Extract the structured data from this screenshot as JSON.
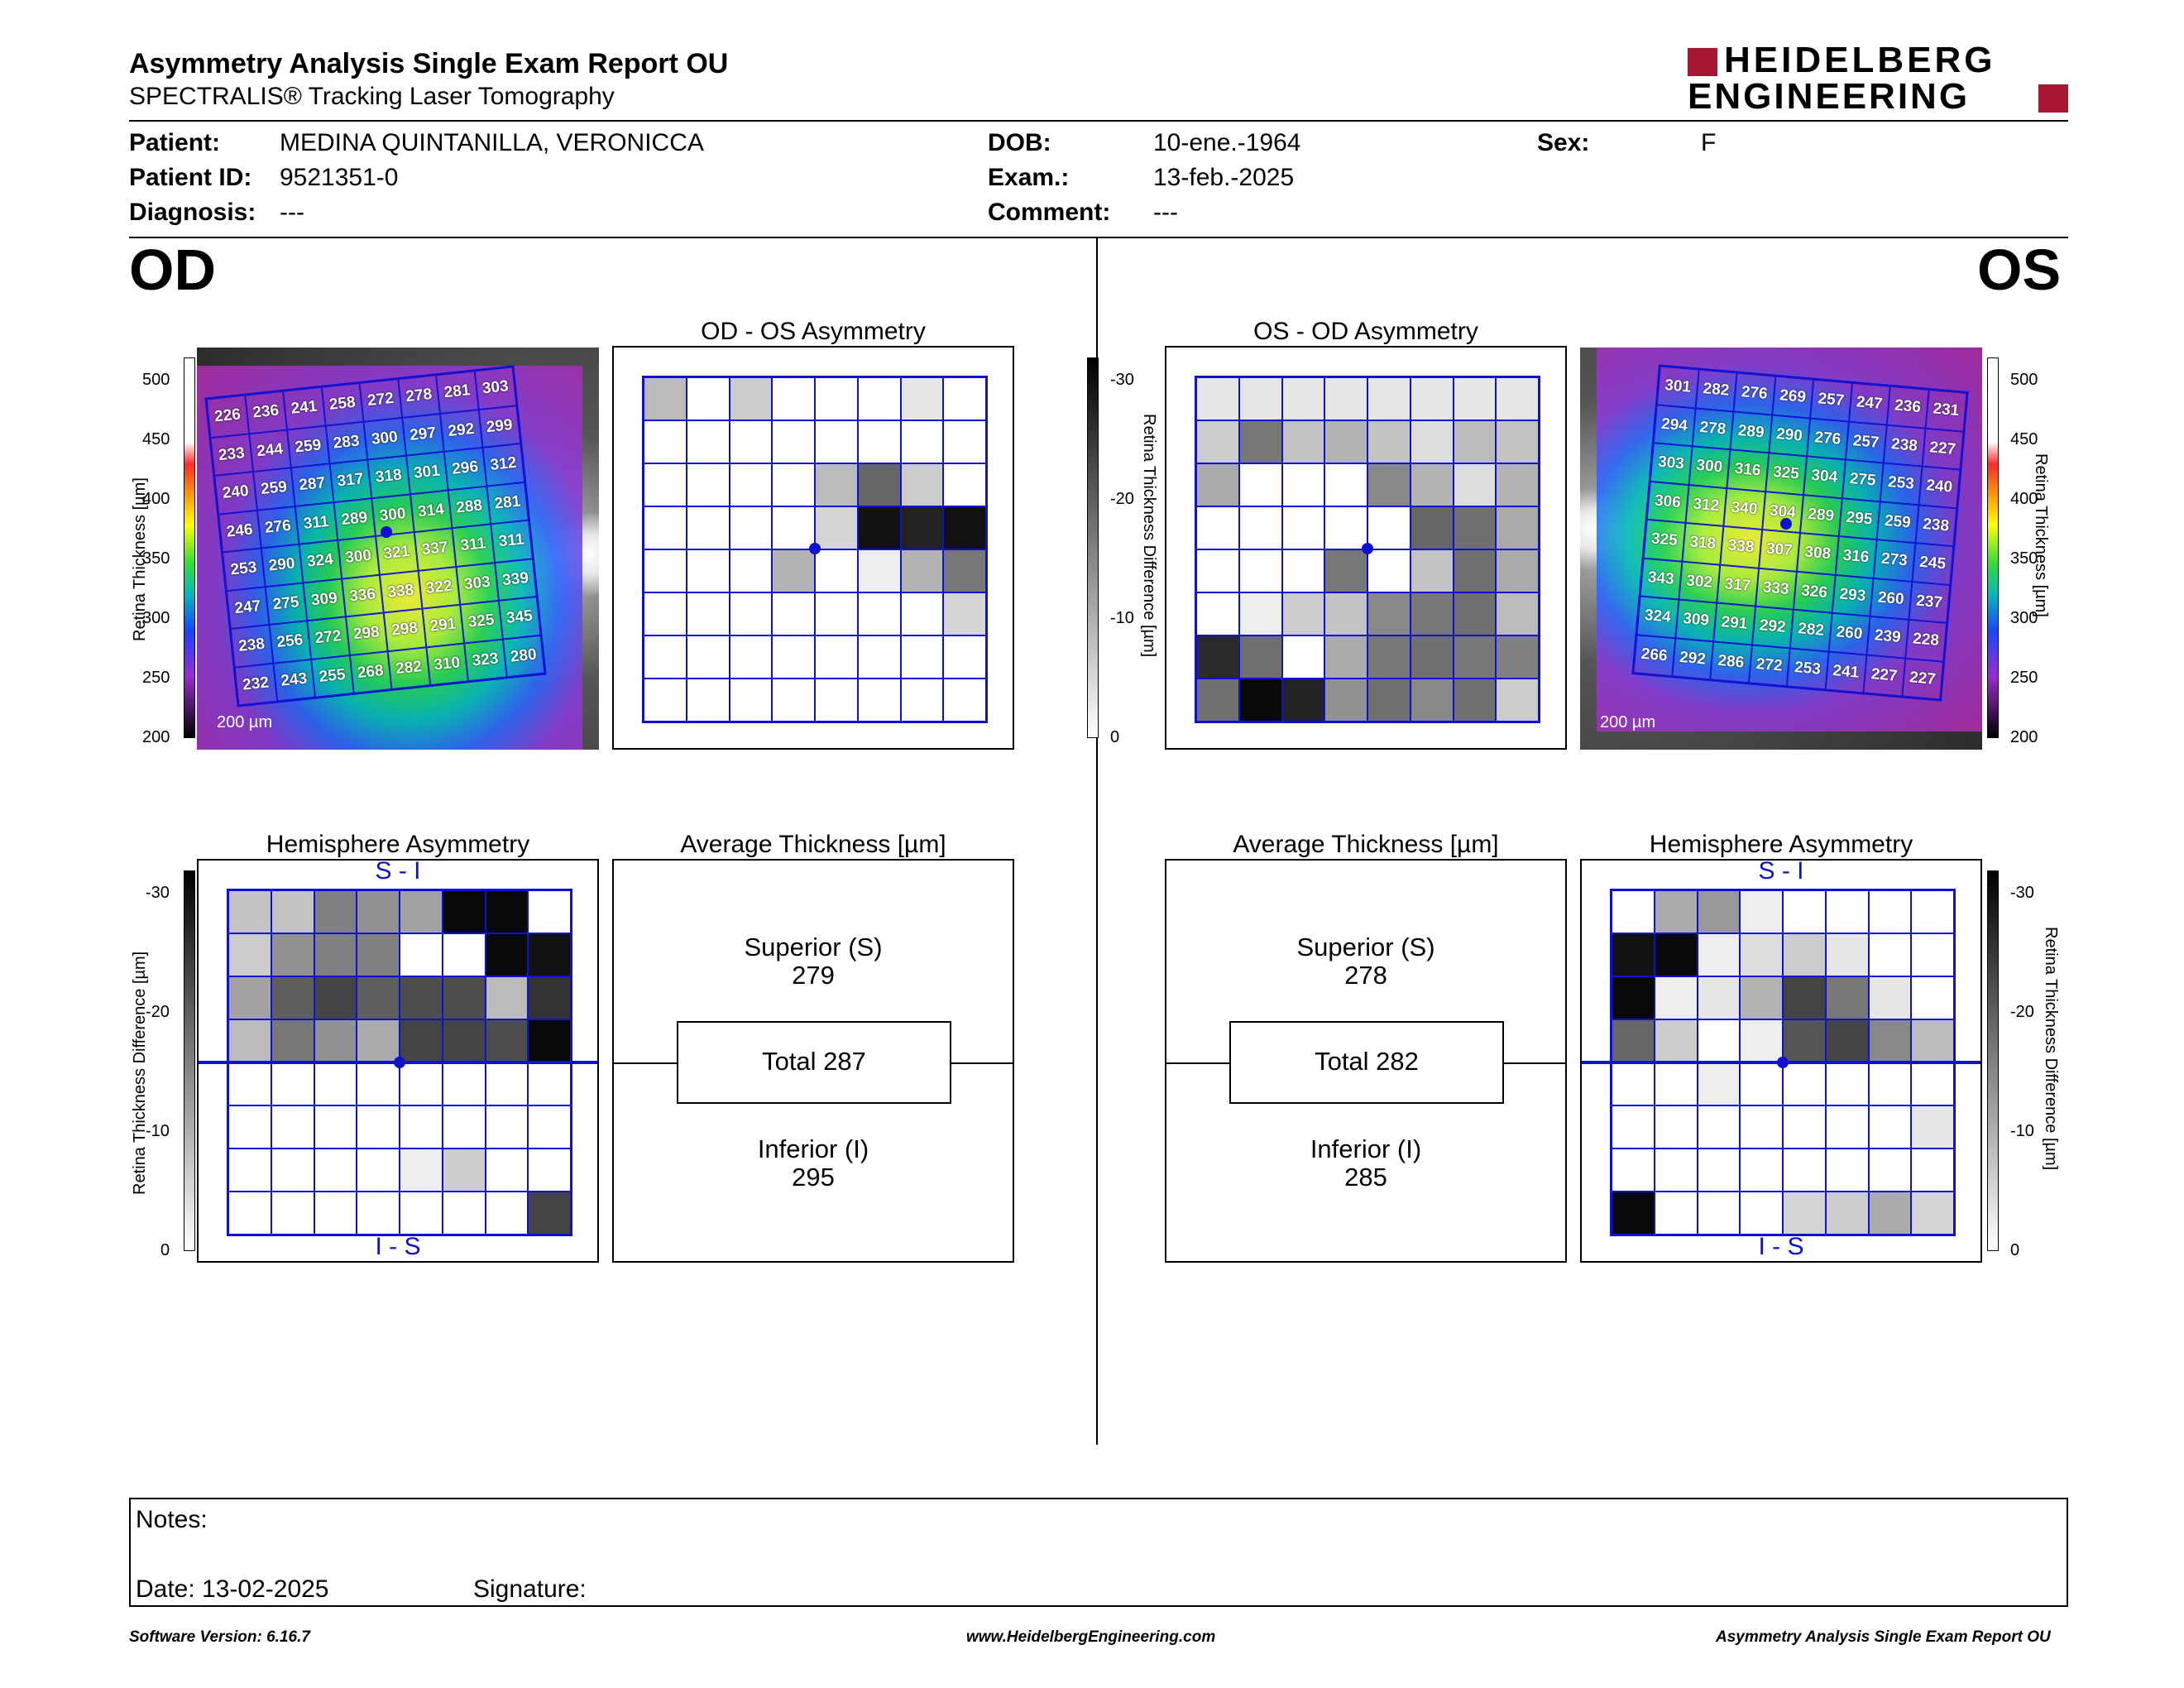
{
  "header": {
    "title": "Asymmetry Analysis Single Exam Report OU",
    "subtitle": "SPECTRALIS® Tracking Laser Tomography",
    "logo_line1": "HEIDELBERG",
    "logo_line2": "ENGINEERING"
  },
  "patient": {
    "patient_label": "Patient:",
    "patient_value": "MEDINA QUINTANILLA, VERONICCA",
    "id_label": "Patient ID:",
    "id_value": "9521351-0",
    "diagnosis_label": "Diagnosis:",
    "diagnosis_value": "---",
    "dob_label": "DOB:",
    "dob_value": "10-ene.-1964",
    "exam_label": "Exam.:",
    "exam_value": "13-feb.-2025",
    "comment_label": "Comment:",
    "comment_value": "---",
    "sex_label": "Sex:",
    "sex_value": "F"
  },
  "eyes": {
    "od": "OD",
    "os": "OS"
  },
  "panels": {
    "od_os_asym": "OD - OS Asymmetry",
    "os_od_asym": "OS - OD Asymmetry",
    "hemi_left": "Hemisphere Asymmetry",
    "hemi_right": "Hemisphere Asymmetry",
    "avg_left": "Average Thickness [µm]",
    "avg_right": "Average Thickness [µm]",
    "s_i": "S - I",
    "i_s": "I - S",
    "scale_left": "200 µm",
    "scale_right": "200 µm"
  },
  "axes": {
    "thickness_label": "Retina Thickness [µm]",
    "thickness_ticks": [
      "500",
      "450",
      "400",
      "350",
      "300",
      "250",
      "200"
    ],
    "diff_label": "Retina Thickness Difference [µm]",
    "diff_ticks": [
      "-30",
      "-20",
      "-10",
      "0"
    ]
  },
  "average": {
    "od": {
      "superior_label": "Superior (S)",
      "superior": "279",
      "total": "Total 287",
      "inferior_label": "Inferior (I)",
      "inferior": "295"
    },
    "os": {
      "superior_label": "Superior (S)",
      "superior": "278",
      "total": "Total 282",
      "inferior_label": "Inferior (I)",
      "inferior": "285"
    }
  },
  "thickness_grid": {
    "od": [
      [
        "226",
        "236",
        "241",
        "258",
        "272",
        "278",
        "281",
        "303"
      ],
      [
        "233",
        "244",
        "259",
        "283",
        "300",
        "297",
        "292",
        "299"
      ],
      [
        "240",
        "259",
        "287",
        "317",
        "318",
        "301",
        "296",
        "312"
      ],
      [
        "246",
        "276",
        "311",
        "289",
        "300",
        "314",
        "288",
        "281"
      ],
      [
        "253",
        "290",
        "324",
        "300",
        "321",
        "337",
        "311",
        "311"
      ],
      [
        "247",
        "275",
        "309",
        "336",
        "338",
        "322",
        "303",
        "339"
      ],
      [
        "238",
        "256",
        "272",
        "298",
        "298",
        "291",
        "325",
        "345"
      ],
      [
        "232",
        "243",
        "255",
        "268",
        "282",
        "310",
        "323",
        "280"
      ]
    ],
    "os": [
      [
        "301",
        "282",
        "276",
        "269",
        "257",
        "247",
        "236",
        "231"
      ],
      [
        "294",
        "278",
        "289",
        "290",
        "276",
        "257",
        "238",
        "227"
      ],
      [
        "303",
        "300",
        "316",
        "325",
        "304",
        "275",
        "253",
        "240"
      ],
      [
        "306",
        "312",
        "340",
        "304",
        "289",
        "295",
        "259",
        "238"
      ],
      [
        "325",
        "318",
        "338",
        "307",
        "308",
        "316",
        "273",
        "245"
      ],
      [
        "343",
        "302",
        "317",
        "333",
        "326",
        "293",
        "260",
        "237"
      ],
      [
        "324",
        "309",
        "291",
        "292",
        "282",
        "260",
        "239",
        "228"
      ],
      [
        "266",
        "292",
        "286",
        "272",
        "253",
        "241",
        "227",
        "227"
      ]
    ]
  },
  "asymmetry_grid": {
    "od": [
      [
        8,
        0,
        6,
        0,
        0,
        0,
        3,
        0
      ],
      [
        0,
        0,
        0,
        0,
        0,
        0,
        0,
        0
      ],
      [
        0,
        0,
        0,
        0,
        8,
        18,
        6,
        0
      ],
      [
        0,
        0,
        0,
        0,
        5,
        28,
        26,
        28
      ],
      [
        0,
        0,
        0,
        9,
        0,
        2,
        9,
        16
      ],
      [
        0,
        0,
        0,
        0,
        0,
        0,
        0,
        5
      ],
      [
        0,
        0,
        0,
        0,
        0,
        0,
        0,
        0
      ],
      [
        0,
        0,
        0,
        0,
        0,
        0,
        0,
        0
      ]
    ],
    "os": [
      [
        3,
        3,
        3,
        3,
        3,
        3,
        3,
        3
      ],
      [
        6,
        16,
        7,
        9,
        7,
        4,
        8,
        7
      ],
      [
        10,
        0,
        0,
        0,
        14,
        9,
        4,
        9
      ],
      [
        0,
        0,
        0,
        0,
        0,
        18,
        17,
        10
      ],
      [
        0,
        0,
        0,
        16,
        0,
        7,
        17,
        10
      ],
      [
        0,
        2,
        6,
        7,
        14,
        16,
        17,
        8
      ],
      [
        25,
        17,
        0,
        10,
        16,
        17,
        16,
        15
      ],
      [
        17,
        29,
        26,
        13,
        17,
        14,
        17,
        6
      ]
    ]
  },
  "hemisphere_grid": {
    "od": [
      [
        7,
        7,
        15,
        13,
        11,
        29,
        29,
        0
      ],
      [
        6,
        13,
        15,
        15,
        0,
        0,
        29,
        28
      ],
      [
        11,
        19,
        22,
        19,
        21,
        21,
        8,
        24
      ],
      [
        8,
        16,
        13,
        10,
        22,
        22,
        21,
        29
      ],
      [
        0,
        0,
        0,
        0,
        0,
        0,
        0,
        0
      ],
      [
        0,
        0,
        0,
        0,
        0,
        0,
        0,
        0
      ],
      [
        0,
        0,
        0,
        0,
        2,
        6,
        0,
        0
      ],
      [
        0,
        0,
        0,
        0,
        0,
        0,
        0,
        22
      ]
    ],
    "os": [
      [
        0,
        10,
        12,
        2,
        0,
        0,
        0,
        0
      ],
      [
        28,
        29,
        2,
        4,
        6,
        3,
        0,
        0
      ],
      [
        29,
        2,
        3,
        9,
        22,
        16,
        3,
        0
      ],
      [
        18,
        6,
        0,
        2,
        20,
        22,
        14,
        8
      ],
      [
        0,
        0,
        2,
        0,
        0,
        0,
        0,
        0
      ],
      [
        0,
        0,
        0,
        0,
        0,
        0,
        0,
        3
      ],
      [
        0,
        0,
        0,
        0,
        0,
        0,
        0,
        0
      ],
      [
        29,
        0,
        0,
        0,
        5,
        6,
        10,
        5
      ]
    ]
  },
  "notes": {
    "notes_label": "Notes:",
    "date_label": "Date: 13-02-2025",
    "signature_label": "Signature:"
  },
  "footer": {
    "version": "Software Version: 6.16.7",
    "website": "www.HeidelbergEngineering.com",
    "report": "Asymmetry Analysis Single Exam Report OU"
  },
  "colors": {
    "grid_blue": "#1010d0",
    "logo_red": "#a5182f",
    "text": "#000000"
  }
}
